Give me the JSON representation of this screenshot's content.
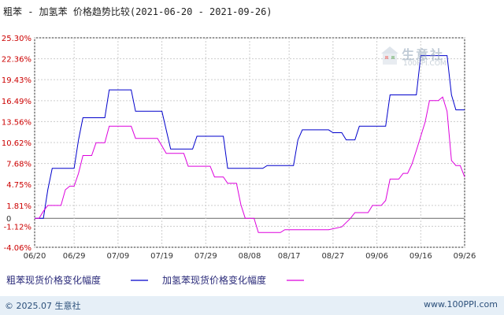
{
  "header": {
    "title": "粗苯 - 加氢苯 价格趋势比较(2021-06-20 - 2021-09-26)"
  },
  "watermark": {
    "brand": "生意社",
    "site": "100PPI.COM"
  },
  "footer": {
    "copyright": "© 2025.07 生意社",
    "url": "www.100PPI.com"
  },
  "colors": {
    "series1": "#0000cc",
    "series2": "#dd00dd",
    "grid": "#cccccc",
    "axis": "#333333",
    "footer_text": "#2b4f7a"
  },
  "chart_data": {
    "type": "line",
    "title": "粗苯 - 加氢苯 价格趋势比较(2021-06-20 - 2021-09-26)",
    "xlabel": "",
    "ylabel": "",
    "ylim": [
      -4.06,
      25.3
    ],
    "y_ticks": [
      "25.30%",
      "22.36%",
      "19.43%",
      "16.49%",
      "13.56%",
      "10.62%",
      "7.68%",
      "4.75%",
      "1.81%",
      "-1.12%",
      "-4.06%"
    ],
    "y_tick_values": [
      25.3,
      22.36,
      19.43,
      16.49,
      13.56,
      10.62,
      7.68,
      4.75,
      1.81,
      -1.12,
      -4.06
    ],
    "zero_label": "0",
    "x_ticks": [
      "06/20",
      "06/29",
      "07/09",
      "07/19",
      "07/29",
      "08/08",
      "08/17",
      "08/27",
      "09/06",
      "09/16",
      "09/26"
    ],
    "x_tick_days": [
      0,
      9,
      19,
      29,
      39,
      49,
      58,
      68,
      78,
      88,
      98
    ],
    "grid": true,
    "legend_position": "bottom",
    "series": [
      {
        "name": "粗苯现货价格变化幅度",
        "color": "#0000cc",
        "points": [
          [
            0,
            0
          ],
          [
            2,
            0
          ],
          [
            3,
            4
          ],
          [
            4,
            7
          ],
          [
            9,
            7
          ],
          [
            10,
            11
          ],
          [
            11,
            14.1
          ],
          [
            16,
            14.1
          ],
          [
            17,
            18
          ],
          [
            22,
            18
          ],
          [
            23,
            15
          ],
          [
            29,
            15
          ],
          [
            31,
            9.7
          ],
          [
            36,
            9.7
          ],
          [
            37,
            11.5
          ],
          [
            43,
            11.5
          ],
          [
            44,
            7
          ],
          [
            52,
            7
          ],
          [
            53,
            7.4
          ],
          [
            59,
            7.4
          ],
          [
            60,
            11
          ],
          [
            61,
            12.4
          ],
          [
            67,
            12.4
          ],
          [
            68,
            12
          ],
          [
            70,
            12
          ],
          [
            71,
            11
          ],
          [
            73,
            11
          ],
          [
            74,
            12.9
          ],
          [
            80,
            12.9
          ],
          [
            81,
            17.3
          ],
          [
            87,
            17.3
          ],
          [
            88,
            22.8
          ],
          [
            94,
            22.8
          ],
          [
            95,
            17.3
          ],
          [
            96,
            15.2
          ],
          [
            98,
            15.2
          ]
        ]
      },
      {
        "name": "加氢苯现货价格变化幅度",
        "color": "#dd00dd",
        "points": [
          [
            0,
            0
          ],
          [
            1,
            0
          ],
          [
            2,
            1
          ],
          [
            3,
            1.8
          ],
          [
            6,
            1.8
          ],
          [
            7,
            4
          ],
          [
            8,
            4.5
          ],
          [
            9,
            4.5
          ],
          [
            10,
            6.3
          ],
          [
            11,
            8.8
          ],
          [
            13,
            8.8
          ],
          [
            14,
            10.6
          ],
          [
            16,
            10.6
          ],
          [
            17,
            12.9
          ],
          [
            22,
            12.9
          ],
          [
            23,
            11.2
          ],
          [
            28,
            11.2
          ],
          [
            30,
            9.1
          ],
          [
            34,
            9.1
          ],
          [
            35,
            7.3
          ],
          [
            40,
            7.3
          ],
          [
            41,
            5.8
          ],
          [
            43,
            5.8
          ],
          [
            44,
            4.9
          ],
          [
            46,
            4.9
          ],
          [
            47,
            1.9
          ],
          [
            48,
            0
          ],
          [
            50,
            0
          ],
          [
            51,
            -2
          ],
          [
            56,
            -2
          ],
          [
            57,
            -1.6
          ],
          [
            67,
            -1.6
          ],
          [
            70,
            -1.2
          ],
          [
            72,
            0
          ],
          [
            73,
            0.8
          ],
          [
            76,
            0.8
          ],
          [
            77,
            1.8
          ],
          [
            79,
            1.8
          ],
          [
            80,
            2.5
          ],
          [
            81,
            5.5
          ],
          [
            83,
            5.5
          ],
          [
            84,
            6.3
          ],
          [
            85,
            6.3
          ],
          [
            86,
            7.6
          ],
          [
            87,
            9.5
          ],
          [
            89,
            13.5
          ],
          [
            90,
            16.5
          ],
          [
            92,
            16.5
          ],
          [
            93,
            17
          ],
          [
            94,
            15
          ],
          [
            95,
            8.1
          ],
          [
            96,
            7.4
          ],
          [
            97,
            7.4
          ],
          [
            98,
            5.8
          ]
        ]
      }
    ]
  }
}
